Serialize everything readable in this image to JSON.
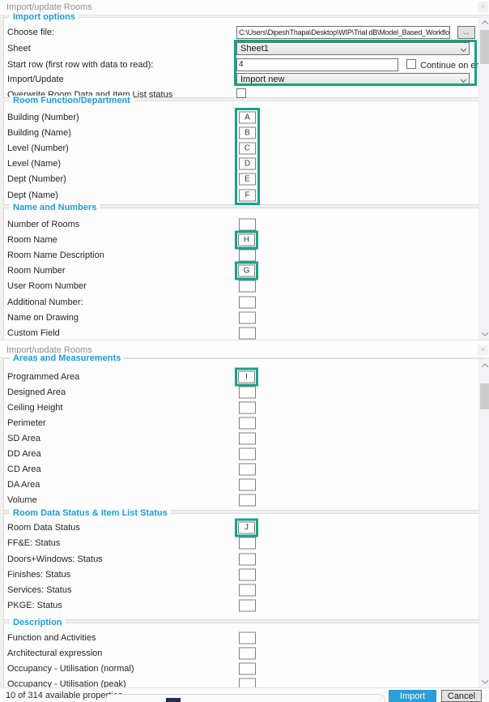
{
  "window": {
    "close_icon": "✕"
  },
  "panel_top": {
    "title": "Import/update Rooms",
    "import_options": {
      "legend": "Import options",
      "choose_file": {
        "label": "Choose file:",
        "value": "C:\\Users\\DipeshThapa\\Desktop\\WIP\\Trial dB\\Model_Based_Workflow",
        "browse_label": "..."
      },
      "sheet": {
        "label": "Sheet",
        "value": "Sheet1"
      },
      "start_row": {
        "label": "Start row (first row with data to read):",
        "value": "4",
        "checkbox_label": "Continue on errors",
        "checked": false
      },
      "import_update": {
        "label": "Import/Update",
        "value": "Import new"
      },
      "overwrite": {
        "label": "Overwrite Room Data and Item List status",
        "checked": false
      }
    },
    "sections": [
      {
        "legend": "Room Function/Department",
        "column_highlight": true,
        "rows": [
          {
            "label": "Building (Number)",
            "value": "A"
          },
          {
            "label": "Building (Name)",
            "value": "B"
          },
          {
            "label": "Level (Number)",
            "value": "C"
          },
          {
            "label": "Level (Name)",
            "value": "D"
          },
          {
            "label": "Dept (Number)",
            "value": "E"
          },
          {
            "label": "Dept (Name)",
            "value": "F"
          }
        ]
      },
      {
        "legend": "Name and Numbers",
        "rows": [
          {
            "label": "Number of Rooms",
            "value": ""
          },
          {
            "label": "Room Name",
            "value": "H",
            "highlight": true
          },
          {
            "label": "Room Name Description",
            "value": ""
          },
          {
            "label": "Room Number",
            "value": "G",
            "highlight": true
          },
          {
            "label": "User Room Number",
            "value": ""
          },
          {
            "label": "Additional Number:",
            "value": ""
          },
          {
            "label": "Name on Drawing",
            "value": ""
          },
          {
            "label": "Custom Field",
            "value": ""
          }
        ]
      }
    ]
  },
  "panel_bottom": {
    "title": "Import/update Rooms",
    "sections": [
      {
        "legend": "Areas and Measurements",
        "rows": [
          {
            "label": "Programmed Area",
            "value": "I",
            "highlight": true
          },
          {
            "label": "Designed Area",
            "value": ""
          },
          {
            "label": "Ceiling Height",
            "value": ""
          },
          {
            "label": "Perimeter",
            "value": ""
          },
          {
            "label": "SD Area",
            "value": ""
          },
          {
            "label": "DD Area",
            "value": ""
          },
          {
            "label": "CD Area",
            "value": ""
          },
          {
            "label": "DA Area",
            "value": ""
          },
          {
            "label": "Volume",
            "value": ""
          }
        ]
      },
      {
        "legend": "Room Data Status & Item List Status",
        "rows": [
          {
            "label": "Room Data Status",
            "value": "J",
            "highlight": true
          },
          {
            "label": "FF&E: Status",
            "value": ""
          },
          {
            "label": "Doors+Windows: Status",
            "value": ""
          },
          {
            "label": "Finishes: Status",
            "value": ""
          },
          {
            "label": "Services: Status",
            "value": ""
          },
          {
            "label": "PKGE: Status",
            "value": ""
          }
        ]
      },
      {
        "legend": "Description",
        "rows": [
          {
            "label": "Function and Activities",
            "value": ""
          },
          {
            "label": "Architectural expression",
            "value": ""
          },
          {
            "label": "Occupancy - Utilisation (normal)",
            "value": ""
          },
          {
            "label": "Occupancy - Utilisation (peak)",
            "value": ""
          }
        ]
      }
    ],
    "footer": {
      "status": "10 of 314 available properties",
      "import_label": "Import",
      "cancel_label": "Cancel"
    }
  },
  "colors": {
    "highlight_teal": "#17a287",
    "legend_blue": "#1b9de2",
    "import_button_blue": "#2b9fd9"
  }
}
